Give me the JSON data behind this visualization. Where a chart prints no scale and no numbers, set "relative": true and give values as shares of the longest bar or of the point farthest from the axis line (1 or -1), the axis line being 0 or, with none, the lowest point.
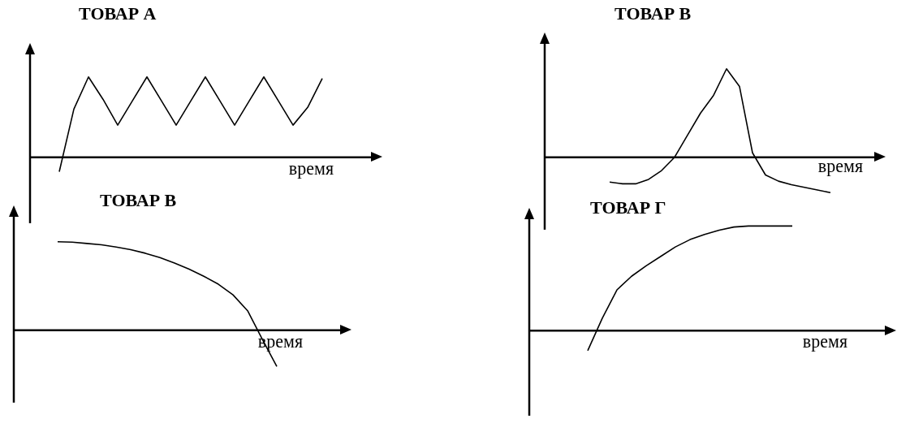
{
  "chart_data": [
    {
      "type": "line",
      "title": "ТОВАР А",
      "xlabel": "время",
      "relative": true,
      "categories": [
        null,
        null,
        null,
        null,
        null,
        null,
        null,
        null,
        null,
        null,
        null,
        null,
        null,
        null,
        null,
        null,
        null,
        null,
        null,
        null,
        null,
        null,
        null,
        null
      ],
      "color": "#000000",
      "values": [
        null,
        null,
        -0.18,
        0.6,
        1,
        0.72,
        0.4,
        0.7,
        1,
        0.7,
        0.4,
        0.7,
        1,
        0.7,
        0.4,
        0.7,
        1,
        0.7,
        0.4,
        0.62,
        0.98,
        null,
        null,
        null
      ]
    },
    {
      "type": "line",
      "title": "ТОВАР В",
      "xlabel": "время",
      "relative": true,
      "categories": [
        null,
        null,
        null,
        null,
        null,
        null,
        null,
        null,
        null,
        null,
        null,
        null,
        null,
        null,
        null,
        null,
        null,
        null,
        null,
        null,
        null,
        null,
        null,
        null,
        null,
        null
      ],
      "color": "#000000",
      "values": [
        null,
        null,
        null,
        null,
        null,
        -0.28,
        -0.3,
        -0.3,
        -0.25,
        -0.15,
        0,
        0.25,
        0.5,
        0.7,
        1,
        0.8,
        0.05,
        -0.2,
        -0.27,
        -0.31,
        -0.34,
        -0.37,
        -0.4,
        null,
        null,
        null
      ]
    },
    {
      "type": "line",
      "title": "ТОВАР В",
      "xlabel": "время",
      "relative": true,
      "categories": [
        null,
        null,
        null,
        null,
        null,
        null,
        null,
        null,
        null,
        null,
        null,
        null,
        null,
        null,
        null,
        null,
        null,
        null,
        null,
        null,
        null,
        null,
        null
      ],
      "color": "#000000",
      "values": [
        null,
        null,
        null,
        1,
        0.995,
        0.98,
        0.965,
        0.94,
        0.91,
        0.87,
        0.82,
        0.76,
        0.69,
        0.61,
        0.52,
        0.4,
        0.22,
        -0.1,
        -0.41,
        null,
        null,
        null,
        null
      ]
    },
    {
      "type": "line",
      "title": "ТОВАР Г",
      "xlabel": "время",
      "relative": true,
      "categories": [
        null,
        null,
        null,
        null,
        null,
        null,
        null,
        null,
        null,
        null,
        null,
        null,
        null,
        null,
        null,
        null,
        null,
        null,
        null,
        null,
        null,
        null,
        null,
        null,
        null
      ],
      "color": "#000000",
      "values": [
        null,
        null,
        null,
        null,
        -0.19,
        0.12,
        0.39,
        0.52,
        0.62,
        0.71,
        0.8,
        0.87,
        0.92,
        0.96,
        0.99,
        1,
        1,
        1,
        1,
        null,
        null,
        null,
        null,
        null,
        null
      ]
    }
  ]
}
